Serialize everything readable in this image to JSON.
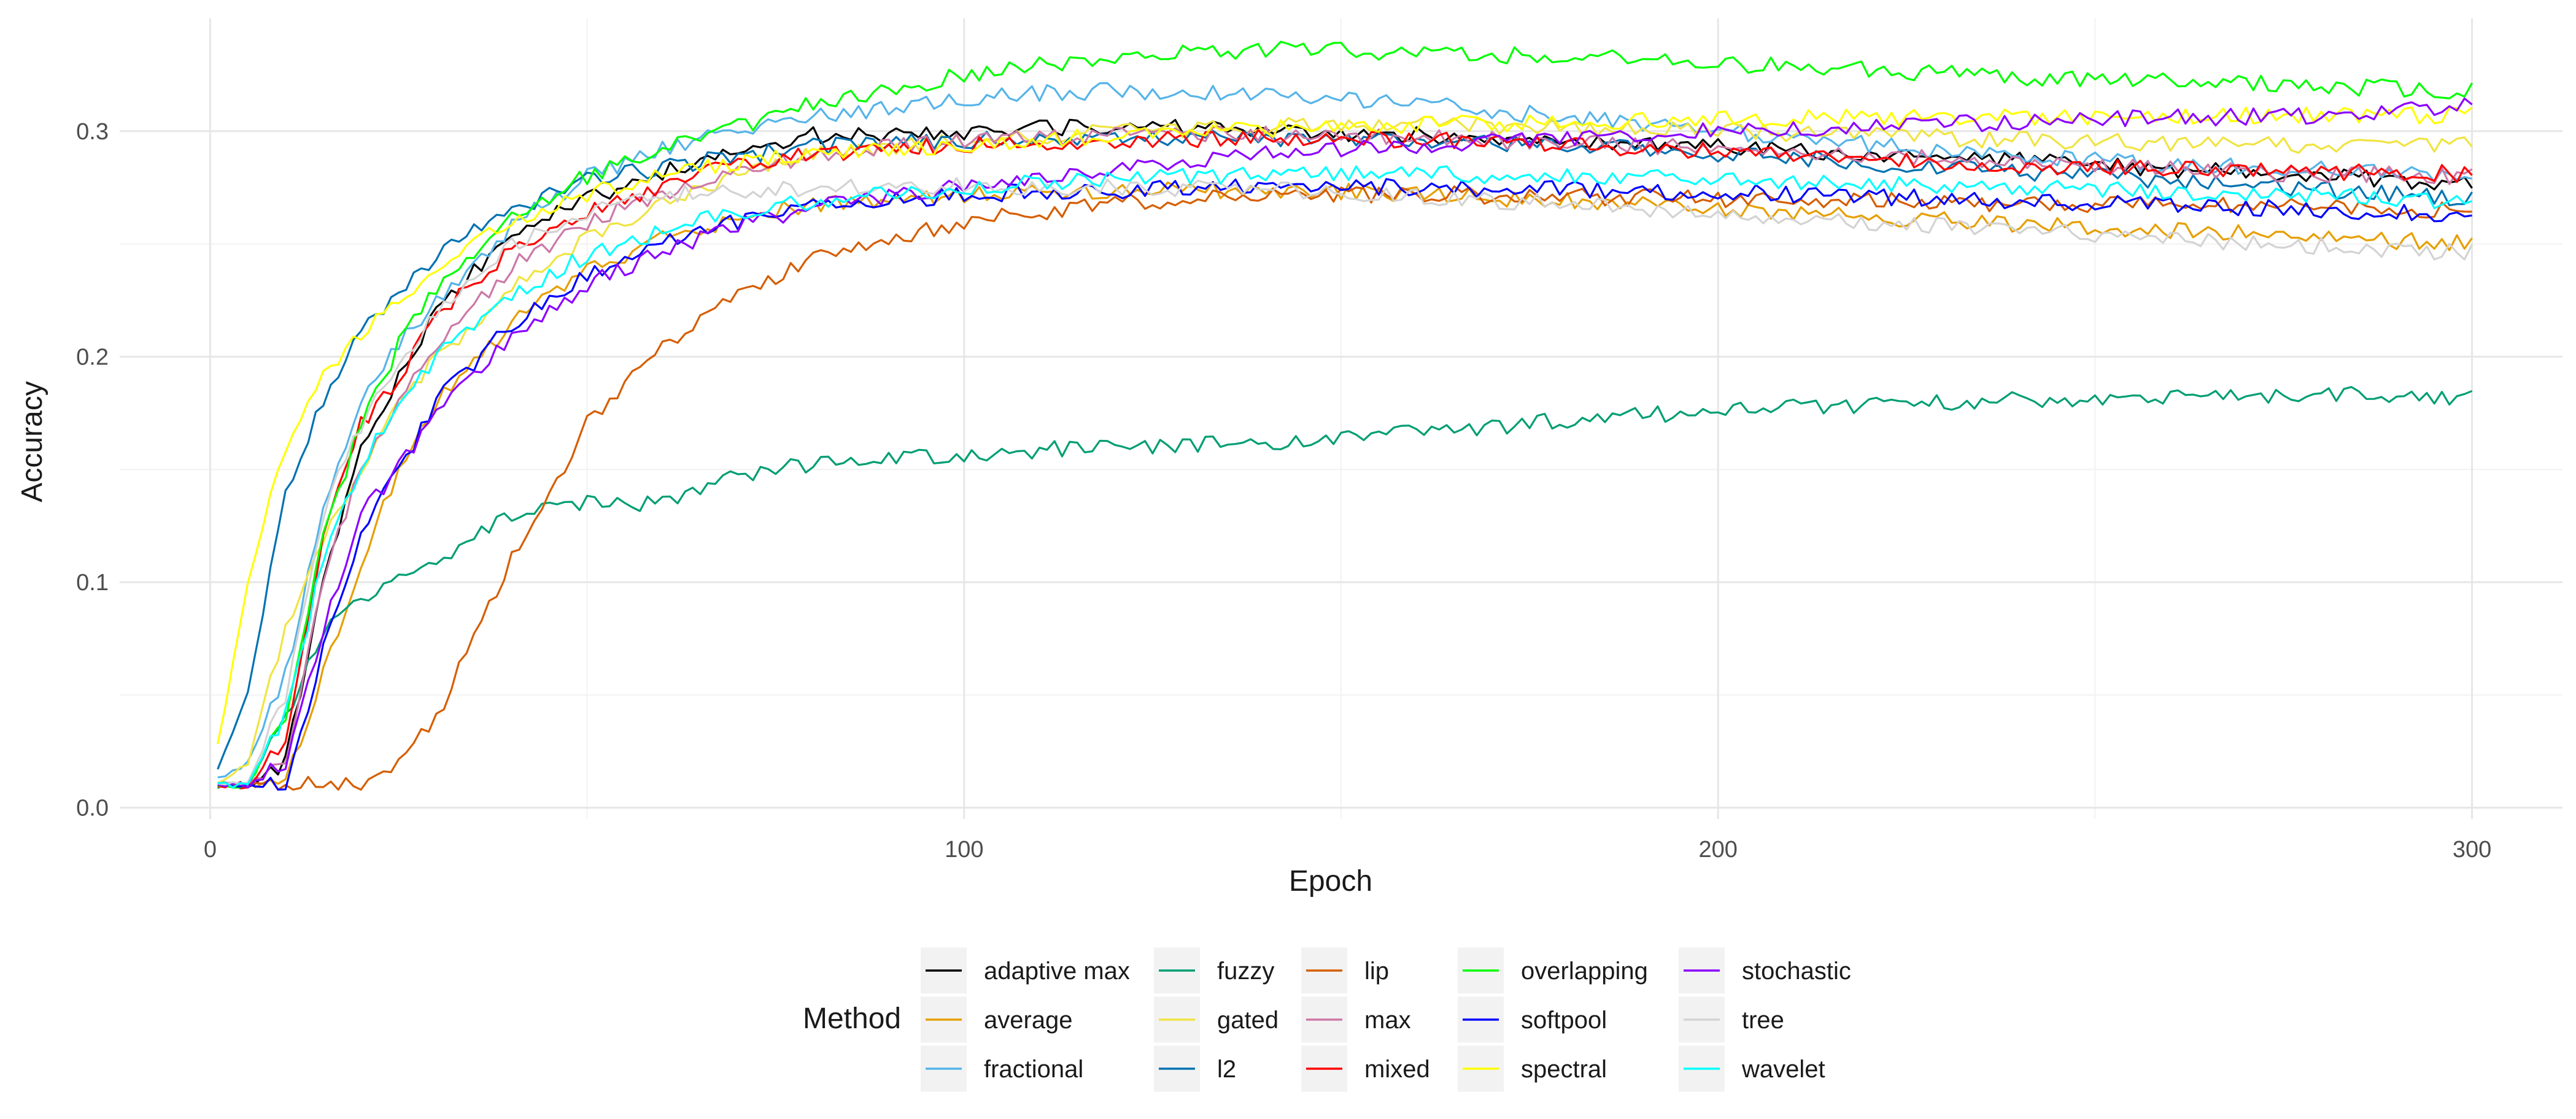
{
  "chart_data": {
    "type": "line",
    "title": "",
    "xlabel": "Epoch",
    "ylabel": "Accuracy",
    "xlim": [
      -12,
      312
    ],
    "ylim": [
      -0.005,
      0.35
    ],
    "xticks": [
      0,
      100,
      200,
      300
    ],
    "xtick_labels": [
      "0",
      "100",
      "200",
      "300"
    ],
    "yticks": [
      0.0,
      0.1,
      0.2,
      0.3
    ],
    "ytick_labels": [
      "0.0",
      "0.1",
      "0.2",
      "0.3"
    ],
    "grid": true,
    "legend": {
      "title": "Method",
      "placement": "bottom"
    },
    "x_breakpoints": [
      0,
      5,
      10,
      15,
      20,
      25,
      30,
      40,
      50,
      60,
      70,
      80,
      100,
      120,
      140,
      160,
      180,
      200,
      220,
      240,
      260,
      280,
      300
    ],
    "series": [
      {
        "name": "adaptive max",
        "color": "#000000",
        "values": [
          0.01,
          0.01,
          0.02,
          0.1,
          0.16,
          0.19,
          0.22,
          0.255,
          0.27,
          0.282,
          0.292,
          0.298,
          0.3,
          0.302,
          0.3,
          0.298,
          0.296,
          0.293,
          0.29,
          0.287,
          0.283,
          0.28,
          0.276
        ]
      },
      {
        "name": "average",
        "color": "#E69F00",
        "values": [
          0.01,
          0.01,
          0.01,
          0.06,
          0.11,
          0.15,
          0.18,
          0.215,
          0.238,
          0.252,
          0.262,
          0.268,
          0.272,
          0.274,
          0.274,
          0.272,
          0.269,
          0.266,
          0.262,
          0.259,
          0.256,
          0.253,
          0.25
        ]
      },
      {
        "name": "fractional",
        "color": "#56B4E9",
        "values": [
          0.01,
          0.02,
          0.06,
          0.13,
          0.18,
          0.205,
          0.225,
          0.258,
          0.28,
          0.292,
          0.3,
          0.306,
          0.315,
          0.318,
          0.316,
          0.312,
          0.306,
          0.3,
          0.294,
          0.289,
          0.285,
          0.283,
          0.28
        ]
      },
      {
        "name": "fuzzy",
        "color": "#009E73",
        "values": [
          0.01,
          0.01,
          0.04,
          0.08,
          0.09,
          0.1,
          0.11,
          0.13,
          0.135,
          0.135,
          0.148,
          0.152,
          0.157,
          0.16,
          0.162,
          0.166,
          0.172,
          0.176,
          0.179,
          0.181,
          0.183,
          0.183,
          0.182
        ]
      },
      {
        "name": "gated",
        "color": "#F0E442",
        "values": [
          0.01,
          0.02,
          0.08,
          0.12,
          0.15,
          0.18,
          0.2,
          0.23,
          0.252,
          0.268,
          0.28,
          0.29,
          0.296,
          0.3,
          0.302,
          0.303,
          0.302,
          0.3,
          0.298,
          0.296,
          0.295,
          0.294,
          0.294
        ]
      },
      {
        "name": "l2",
        "color": "#0072B2",
        "values": [
          0.01,
          0.05,
          0.14,
          0.18,
          0.21,
          0.23,
          0.245,
          0.265,
          0.278,
          0.284,
          0.289,
          0.293,
          0.296,
          0.297,
          0.297,
          0.296,
          0.294,
          0.29,
          0.286,
          0.282,
          0.278,
          0.274,
          0.27
        ]
      },
      {
        "name": "lip",
        "color": "#D55E00",
        "values": [
          0.01,
          0.01,
          0.01,
          0.01,
          0.01,
          0.018,
          0.04,
          0.11,
          0.17,
          0.205,
          0.228,
          0.244,
          0.26,
          0.268,
          0.272,
          0.272,
          0.271,
          0.27,
          0.269,
          0.268,
          0.267,
          0.266,
          0.265
        ]
      },
      {
        "name": "max",
        "color": "#CC79A7",
        "values": [
          0.01,
          0.01,
          0.02,
          0.1,
          0.15,
          0.18,
          0.205,
          0.24,
          0.26,
          0.272,
          0.282,
          0.289,
          0.296,
          0.298,
          0.299,
          0.297,
          0.295,
          0.292,
          0.289,
          0.286,
          0.283,
          0.281,
          0.28
        ]
      },
      {
        "name": "mixed",
        "color": "#FF0000",
        "values": [
          0.01,
          0.01,
          0.03,
          0.12,
          0.17,
          0.19,
          0.218,
          0.248,
          0.265,
          0.276,
          0.285,
          0.29,
          0.294,
          0.296,
          0.297,
          0.296,
          0.294,
          0.291,
          0.288,
          0.285,
          0.283,
          0.282,
          0.281
        ]
      },
      {
        "name": "overlapping",
        "color": "#00FF00",
        "values": [
          0.01,
          0.01,
          0.04,
          0.12,
          0.17,
          0.205,
          0.23,
          0.262,
          0.28,
          0.292,
          0.302,
          0.312,
          0.325,
          0.333,
          0.336,
          0.335,
          0.333,
          0.33,
          0.327,
          0.324,
          0.322,
          0.32,
          0.318
        ]
      },
      {
        "name": "softpool",
        "color": "#0000FF",
        "values": [
          0.01,
          0.01,
          0.01,
          0.07,
          0.12,
          0.15,
          0.18,
          0.215,
          0.237,
          0.25,
          0.26,
          0.266,
          0.272,
          0.274,
          0.275,
          0.275,
          0.274,
          0.273,
          0.271,
          0.269,
          0.267,
          0.265,
          0.263
        ]
      },
      {
        "name": "spectral",
        "color": "#FFFF00",
        "values": [
          0.01,
          0.1,
          0.16,
          0.19,
          0.21,
          0.225,
          0.24,
          0.26,
          0.272,
          0.28,
          0.286,
          0.29,
          0.294,
          0.298,
          0.301,
          0.303,
          0.304,
          0.305,
          0.306,
          0.306,
          0.307,
          0.307,
          0.307
        ]
      },
      {
        "name": "stochastic",
        "color": "#8B00FF",
        "values": [
          0.01,
          0.01,
          0.02,
          0.08,
          0.13,
          0.15,
          0.175,
          0.21,
          0.232,
          0.247,
          0.258,
          0.266,
          0.276,
          0.284,
          0.29,
          0.294,
          0.297,
          0.3,
          0.302,
          0.304,
          0.306,
          0.307,
          0.312
        ]
      },
      {
        "name": "tree",
        "color": "#D3D3D3",
        "values": [
          0.01,
          0.01,
          0.05,
          0.13,
          0.17,
          0.195,
          0.22,
          0.25,
          0.264,
          0.271,
          0.274,
          0.275,
          0.276,
          0.275,
          0.274,
          0.271,
          0.268,
          0.264,
          0.26,
          0.256,
          0.252,
          0.249,
          0.246
        ]
      },
      {
        "name": "wavelet",
        "color": "#00FFFF",
        "values": [
          0.01,
          0.01,
          0.04,
          0.11,
          0.15,
          0.18,
          0.2,
          0.228,
          0.245,
          0.256,
          0.264,
          0.269,
          0.275,
          0.279,
          0.281,
          0.281,
          0.28,
          0.279,
          0.277,
          0.275,
          0.273,
          0.271,
          0.269
        ]
      }
    ]
  }
}
